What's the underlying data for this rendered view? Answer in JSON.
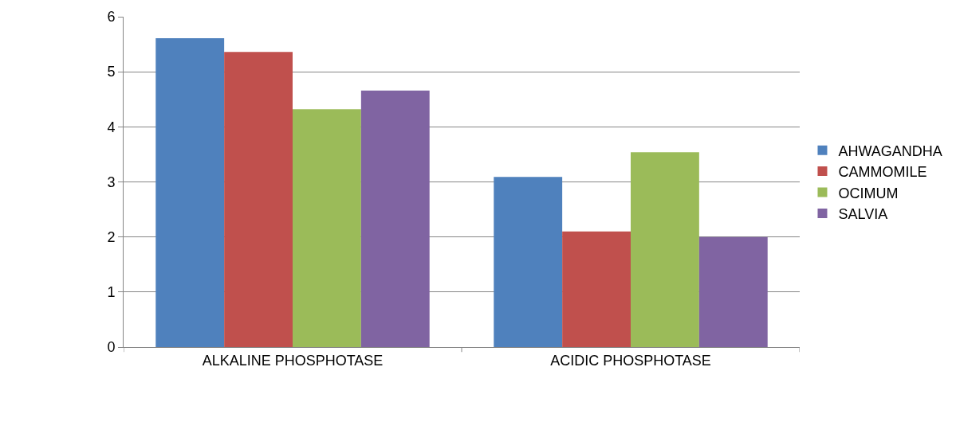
{
  "chart_data": {
    "type": "bar",
    "categories": [
      "ALKALINE PHOSPHOTASE",
      "ACIDIC PHOSPHOTASE"
    ],
    "series": [
      {
        "name": "AHWAGANDHA",
        "color": "#4f81bd",
        "values": [
          5.61,
          3.09
        ]
      },
      {
        "name": "CAMMOMILE",
        "color": "#c0504d",
        "values": [
          5.36,
          2.1
        ]
      },
      {
        "name": "OCIMUM",
        "color": "#9bbb59",
        "values": [
          4.32,
          3.54
        ]
      },
      {
        "name": "SALVIA",
        "color": "#8064a2",
        "values": [
          4.66,
          2.0
        ]
      }
    ],
    "ylim": [
      0,
      6
    ],
    "yticks": [
      0,
      1,
      2,
      3,
      4,
      5,
      6
    ],
    "grid": "y",
    "legend": "right"
  }
}
